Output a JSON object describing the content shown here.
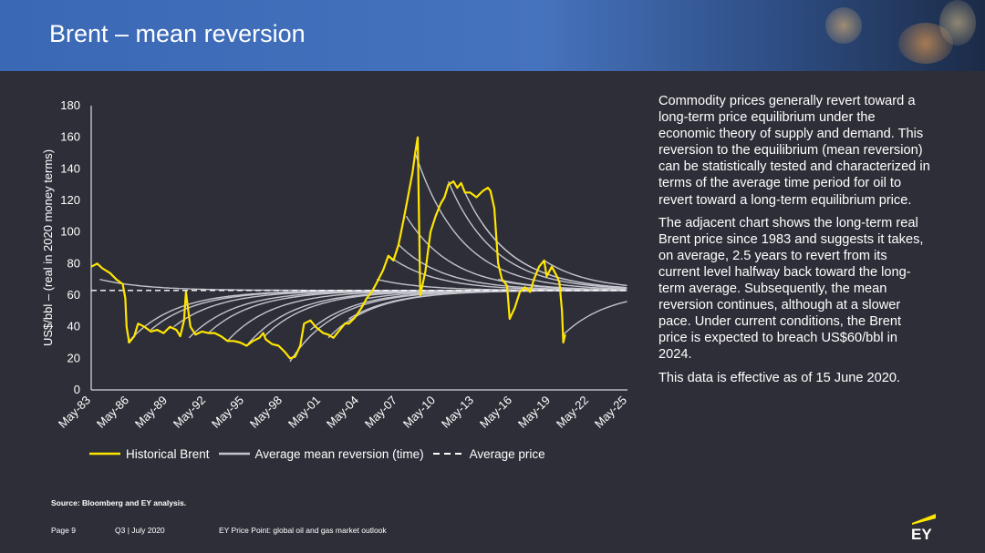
{
  "slide": {
    "title": "Brent – mean reversion",
    "page": "Page 9",
    "period": "Q3 | July 2020",
    "publication": "EY Price Point: global oil and gas market outlook",
    "source": "Source: Bloomberg and EY analysis.",
    "logo_text": "EY"
  },
  "description": [
    "Commodity prices generally revert toward a long-term price equilibrium under the economic theory of supply and demand. This reversion to the equilibrium (mean reversion) can be statistically tested and characterized in terms of the average time period for oil to revert toward a long-term equilibrium price.",
    "The adjacent chart shows the long-term real Brent price since 1983 and suggests it takes, on average, 2.5 years to revert from its current level halfway back toward the long-term average. Subsequently, the mean reversion continues, although at a slower pace. Under current conditions, the Brent price is expected to breach US$60/bbl in 2024.",
    "This data is effective as of 15 June 2020."
  ],
  "colors": {
    "brent": "#ffe600",
    "reversion": "#c4c4cd",
    "average": "#ffffff",
    "background": "#2e2e38"
  },
  "chart_data": {
    "type": "line",
    "ylabel": "US$/bbl – (real in 2020 money terms)",
    "xlabel": "",
    "ylim": [
      0,
      180
    ],
    "yticks": [
      0,
      20,
      40,
      60,
      80,
      100,
      120,
      140,
      160,
      180
    ],
    "xlim": [
      1983.33,
      2025.33
    ],
    "xtick_labels": [
      "May-83",
      "May-86",
      "May-89",
      "May-92",
      "May-95",
      "May-98",
      "May-01",
      "May-04",
      "May-07",
      "May-10",
      "May-13",
      "May-16",
      "May-19",
      "May-22",
      "May-25"
    ],
    "legend": [
      "Historical Brent",
      "Average mean reversion (time)",
      "Average price"
    ],
    "legend_position": "bottom",
    "average_price": 63,
    "historical_brent": {
      "x": [
        1983.33,
        1983.8,
        1984.2,
        1984.8,
        1985.3,
        1985.8,
        1986.0,
        1986.1,
        1986.3,
        1986.5,
        1986.7,
        1987.0,
        1987.5,
        1988.0,
        1988.5,
        1989.0,
        1989.5,
        1990.0,
        1990.3,
        1990.6,
        1990.75,
        1990.9,
        1991.1,
        1991.5,
        1992.0,
        1992.5,
        1993.0,
        1993.5,
        1994.0,
        1994.5,
        1995.0,
        1995.5,
        1996.0,
        1996.5,
        1996.8,
        1997.0,
        1997.5,
        1998.0,
        1998.5,
        1998.9,
        1999.3,
        1999.7,
        2000.0,
        2000.5,
        2000.9,
        2001.5,
        2001.9,
        2002.3,
        2002.8,
        2003.2,
        2003.5,
        2004.0,
        2004.5,
        2004.9,
        2005.3,
        2005.7,
        2006.2,
        2006.6,
        2007.0,
        2007.4,
        2007.8,
        2008.2,
        2008.5,
        2008.7,
        2008.9,
        2009.1,
        2009.5,
        2009.9,
        2010.3,
        2010.7,
        2011.0,
        2011.3,
        2011.7,
        2012.0,
        2012.3,
        2012.6,
        2013.0,
        2013.5,
        2014.0,
        2014.4,
        2014.6,
        2014.9,
        2015.2,
        2015.5,
        2015.9,
        2016.1,
        2016.5,
        2016.9,
        2017.3,
        2017.7,
        2018.0,
        2018.4,
        2018.8,
        2019.0,
        2019.4,
        2019.8,
        2020.0,
        2020.2,
        2020.3,
        2020.45
      ],
      "y": [
        78,
        80,
        77,
        74,
        70,
        67,
        58,
        40,
        30,
        32,
        34,
        42,
        40,
        37,
        38,
        36,
        40,
        38,
        34,
        44,
        62,
        52,
        40,
        35,
        37,
        36,
        36,
        34,
        31,
        31,
        30,
        28,
        31,
        33,
        36,
        32,
        29,
        28,
        24,
        20,
        21,
        28,
        42,
        44,
        40,
        36,
        35,
        33,
        38,
        42,
        42,
        46,
        52,
        58,
        62,
        68,
        76,
        85,
        82,
        92,
        108,
        125,
        138,
        150,
        160,
        60,
        75,
        100,
        110,
        118,
        122,
        130,
        132,
        128,
        131,
        125,
        125,
        122,
        126,
        128,
        126,
        115,
        80,
        70,
        66,
        45,
        52,
        62,
        65,
        62,
        70,
        78,
        82,
        72,
        78,
        72,
        68,
        50,
        30,
        35
      ]
    },
    "reversion_curves": [
      {
        "x0": 1984.0,
        "y0": 70
      },
      {
        "x0": 1986.2,
        "y0": 30
      },
      {
        "x0": 1988.0,
        "y0": 38
      },
      {
        "x0": 1989.8,
        "y0": 40
      },
      {
        "x0": 1991.0,
        "y0": 33
      },
      {
        "x0": 1992.5,
        "y0": 36
      },
      {
        "x0": 1994.0,
        "y0": 31
      },
      {
        "x0": 1995.5,
        "y0": 28
      },
      {
        "x0": 1996.9,
        "y0": 34
      },
      {
        "x0": 1998.9,
        "y0": 18
      },
      {
        "x0": 2000.5,
        "y0": 38
      },
      {
        "x0": 2001.9,
        "y0": 33
      },
      {
        "x0": 2003.5,
        "y0": 45
      },
      {
        "x0": 2005.0,
        "y0": 58
      },
      {
        "x0": 2005.7,
        "y0": 70
      },
      {
        "x0": 2006.6,
        "y0": 85
      },
      {
        "x0": 2007.4,
        "y0": 92
      },
      {
        "x0": 2008.0,
        "y0": 110
      },
      {
        "x0": 2008.7,
        "y0": 150
      },
      {
        "x0": 2011.3,
        "y0": 132
      },
      {
        "x0": 2012.6,
        "y0": 125
      },
      {
        "x0": 2014.0,
        "y0": 105
      },
      {
        "x0": 2015.2,
        "y0": 70
      },
      {
        "x0": 2017.7,
        "y0": 66
      },
      {
        "x0": 2018.8,
        "y0": 82
      },
      {
        "x0": 2020.3,
        "y0": 35
      }
    ]
  }
}
